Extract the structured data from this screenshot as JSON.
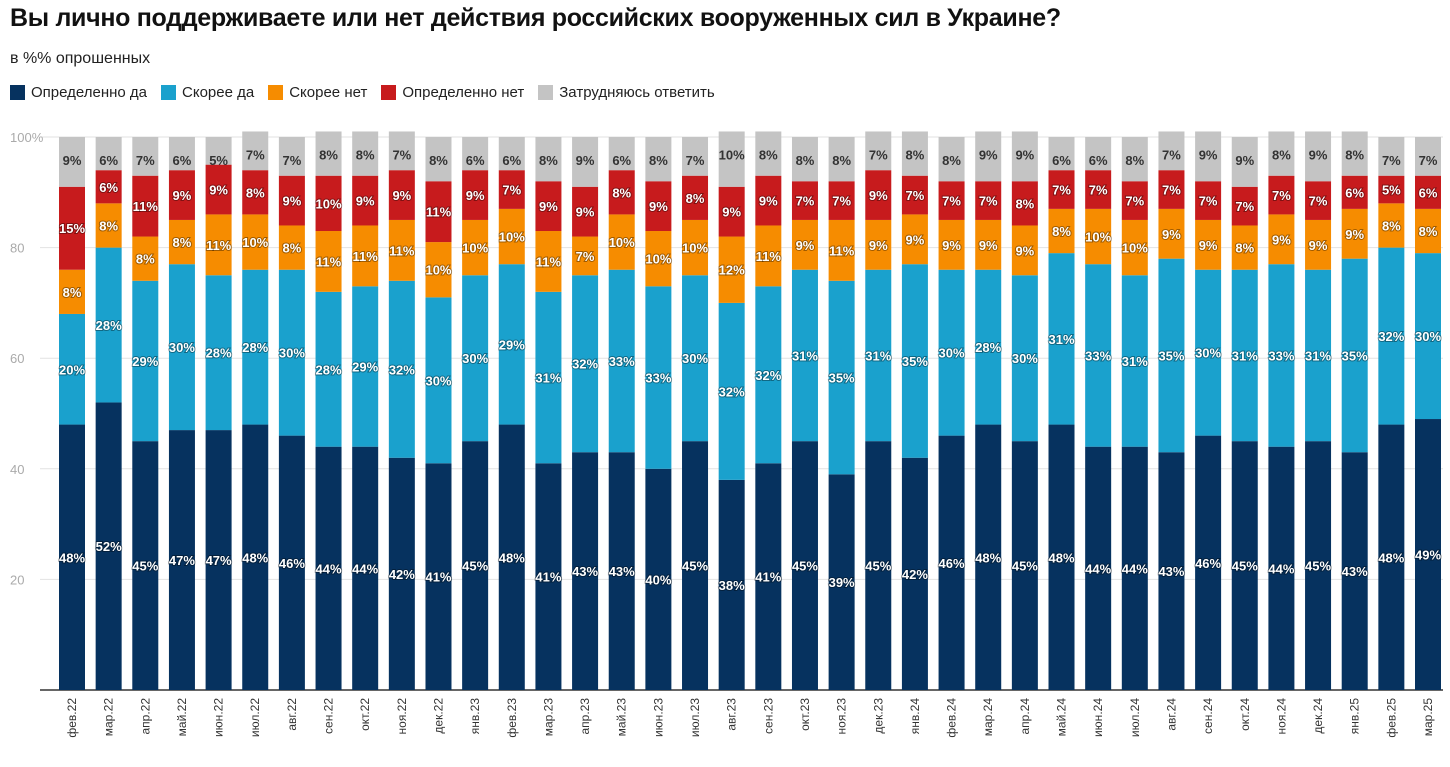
{
  "chart_data": {
    "type": "bar",
    "stacked": true,
    "title": "Вы лично поддерживаете или нет действия российских вооруженных сил в Украине?",
    "subtitle": "в %% опрошенных",
    "ylim": [
      0,
      100
    ],
    "yticks": [
      "0",
      "20",
      "40",
      "60",
      "80",
      "100%"
    ],
    "grid": true,
    "legend_position": "top-left",
    "categories": [
      "фев.22",
      "мар.22",
      "апр.22",
      "май.22",
      "июн.22",
      "июл.22",
      "авг.22",
      "сен.22",
      "окт.22",
      "ноя.22",
      "дек.22",
      "янв.23",
      "фев.23",
      "мар.23",
      "апр.23",
      "май.23",
      "июн.23",
      "июл.23",
      "авг.23",
      "сен.23",
      "окт.23",
      "ноя.23",
      "дек.23",
      "янв.24",
      "фев.24",
      "мар.24",
      "апр.24",
      "май.24",
      "июн.24",
      "июл.24",
      "авг.24",
      "сен.24",
      "окт.24",
      "ноя.24",
      "дек.24",
      "янв.25",
      "фев.25",
      "мар.25"
    ],
    "series": [
      {
        "name": "Определенно да",
        "color": "#06325f",
        "label_color": "#ffffff",
        "values": [
          48,
          52,
          45,
          47,
          47,
          48,
          46,
          44,
          44,
          42,
          41,
          45,
          48,
          41,
          43,
          43,
          40,
          45,
          38,
          41,
          45,
          39,
          45,
          42,
          46,
          48,
          45,
          48,
          44,
          44,
          43,
          46,
          45,
          44,
          45,
          43,
          48,
          49
        ]
      },
      {
        "name": "Скорее да",
        "color": "#1aa1cd",
        "label_color": "#ffffff",
        "values": [
          20,
          28,
          29,
          30,
          28,
          28,
          30,
          28,
          29,
          32,
          30,
          30,
          29,
          31,
          32,
          33,
          33,
          30,
          32,
          32,
          31,
          35,
          31,
          35,
          30,
          28,
          30,
          31,
          33,
          31,
          35,
          30,
          31,
          33,
          31,
          35,
          32,
          30
        ]
      },
      {
        "name": "Скорее нет",
        "color": "#f68c00",
        "label_color": "#ffffff",
        "values": [
          8,
          8,
          8,
          8,
          11,
          10,
          8,
          11,
          11,
          11,
          10,
          10,
          10,
          11,
          7,
          10,
          10,
          10,
          12,
          11,
          9,
          11,
          9,
          9,
          9,
          9,
          9,
          8,
          10,
          10,
          9,
          9,
          8,
          9,
          9,
          9,
          8,
          8
        ]
      },
      {
        "name": "Определенно нет",
        "color": "#c71b1d",
        "label_color": "#ffffff",
        "values": [
          15,
          6,
          11,
          9,
          9,
          8,
          9,
          10,
          9,
          9,
          11,
          9,
          7,
          9,
          9,
          8,
          9,
          8,
          9,
          9,
          7,
          7,
          9,
          7,
          7,
          7,
          8,
          7,
          7,
          7,
          7,
          7,
          7,
          7,
          7,
          6,
          5,
          6
        ]
      },
      {
        "name": "Затрудняюсь ответить",
        "color": "#c4c4c4",
        "label_color": "#333333",
        "values": [
          9,
          6,
          7,
          6,
          5,
          7,
          7,
          8,
          8,
          7,
          8,
          6,
          6,
          8,
          9,
          6,
          8,
          7,
          10,
          8,
          8,
          8,
          7,
          8,
          8,
          9,
          9,
          6,
          6,
          8,
          7,
          9,
          9,
          8,
          9,
          8,
          7,
          7
        ]
      }
    ]
  }
}
